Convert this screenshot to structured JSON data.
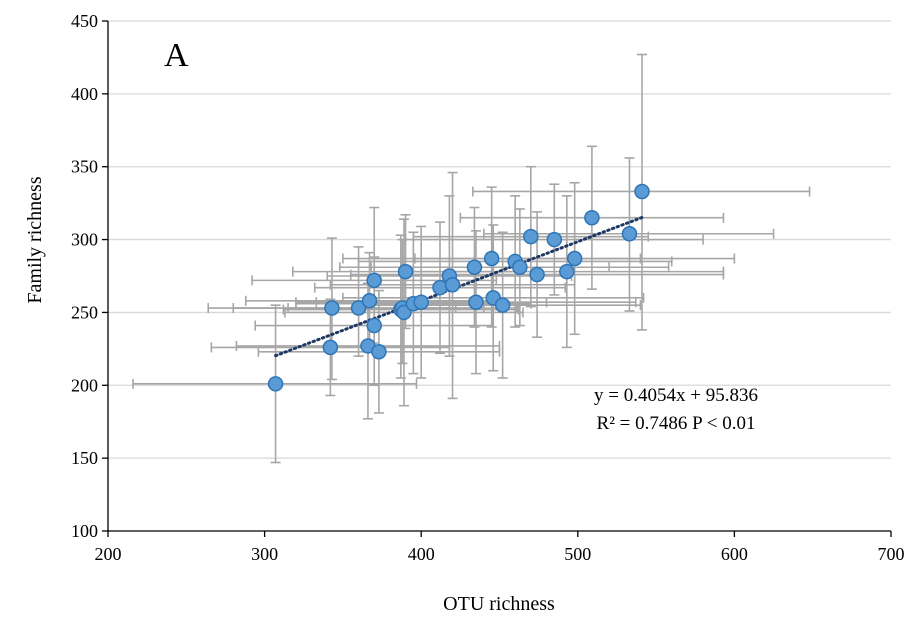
{
  "chart_data": {
    "type": "scatter",
    "panel_label": "A",
    "xlabel": "OTU richness",
    "ylabel": "Family richness",
    "xlim": [
      200,
      700
    ],
    "ylim": [
      100,
      450
    ],
    "xticks": [
      "200",
      "300",
      "400",
      "500",
      "600",
      "700"
    ],
    "yticks": [
      "100",
      "150",
      "200",
      "250",
      "300",
      "350",
      "400",
      "450"
    ],
    "grid": "horizontal",
    "colors": {
      "point_fill": "#5b9bd5",
      "point_stroke": "#2e75b6",
      "error_bar": "#a6a6a6",
      "trendline": "#1f3864",
      "grid": "#d9d9d9"
    },
    "points": [
      {
        "x": 307,
        "y": 201,
        "xerr": [
          216,
          397
        ],
        "yerr": [
          147,
          255
        ]
      },
      {
        "x": 342,
        "y": 226,
        "xerr": [
          266,
          418
        ],
        "yerr": [
          193,
          259
        ]
      },
      {
        "x": 343,
        "y": 253,
        "xerr": [
          264,
          422
        ],
        "yerr": [
          204,
          301
        ]
      },
      {
        "x": 360,
        "y": 253,
        "xerr": [
          280,
          440
        ],
        "yerr": [
          220,
          295
        ]
      },
      {
        "x": 366,
        "y": 227,
        "xerr": [
          282,
          450
        ],
        "yerr": [
          177,
          270
        ]
      },
      {
        "x": 367,
        "y": 258,
        "xerr": [
          288,
          446
        ],
        "yerr": [
          224,
          291
        ]
      },
      {
        "x": 370,
        "y": 241,
        "xerr": [
          294,
          446
        ],
        "yerr": [
          200,
          288
        ]
      },
      {
        "x": 370,
        "y": 272,
        "xerr": [
          292,
          448
        ],
        "yerr": [
          229,
          322
        ]
      },
      {
        "x": 373,
        "y": 223,
        "xerr": [
          296,
          450
        ],
        "yerr": [
          181,
          265
        ]
      },
      {
        "x": 387,
        "y": 252,
        "xerr": [
          312,
          462
        ],
        "yerr": [
          205,
          303
        ]
      },
      {
        "x": 388,
        "y": 253,
        "xerr": [
          315,
          461
        ],
        "yerr": [
          215,
          300
        ]
      },
      {
        "x": 389,
        "y": 250,
        "xerr": [
          313,
          465
        ],
        "yerr": [
          186,
          314
        ]
      },
      {
        "x": 390,
        "y": 278,
        "xerr": [
          318,
          462
        ],
        "yerr": [
          239,
          317
        ]
      },
      {
        "x": 395,
        "y": 256,
        "xerr": [
          320,
          470
        ],
        "yerr": [
          208,
          305
        ]
      },
      {
        "x": 400,
        "y": 257,
        "xerr": [
          320,
          480
        ],
        "yerr": [
          205,
          309
        ]
      },
      {
        "x": 412,
        "y": 267,
        "xerr": [
          332,
          492
        ],
        "yerr": [
          222,
          312
        ]
      },
      {
        "x": 418,
        "y": 275,
        "xerr": [
          340,
          496
        ],
        "yerr": [
          220,
          330
        ]
      },
      {
        "x": 420,
        "y": 269,
        "xerr": [
          342,
          498
        ],
        "yerr": [
          191,
          346
        ]
      },
      {
        "x": 434,
        "y": 281,
        "xerr": [
          348,
          520
        ],
        "yerr": [
          240,
          322
        ]
      },
      {
        "x": 435,
        "y": 257,
        "xerr": [
          333,
          537
        ],
        "yerr": [
          208,
          306
        ]
      },
      {
        "x": 445,
        "y": 287,
        "xerr": [
          350,
          540
        ],
        "yerr": [
          240,
          336
        ]
      },
      {
        "x": 446,
        "y": 260,
        "xerr": [
          350,
          542
        ],
        "yerr": [
          210,
          310
        ]
      },
      {
        "x": 452,
        "y": 255,
        "xerr": [
          365,
          540
        ],
        "yerr": [
          205,
          305
        ]
      },
      {
        "x": 460,
        "y": 285,
        "xerr": [
          360,
          560
        ],
        "yerr": [
          240,
          330
        ]
      },
      {
        "x": 463,
        "y": 281,
        "xerr": [
          368,
          558
        ],
        "yerr": [
          241,
          321
        ]
      },
      {
        "x": 470,
        "y": 302,
        "xerr": [
          395,
          545
        ],
        "yerr": [
          254,
          350
        ]
      },
      {
        "x": 474,
        "y": 276,
        "xerr": [
          355,
          593
        ],
        "yerr": [
          233,
          319
        ]
      },
      {
        "x": 485,
        "y": 300,
        "xerr": [
          390,
          580
        ],
        "yerr": [
          262,
          338
        ]
      },
      {
        "x": 493,
        "y": 278,
        "xerr": [
          393,
          593
        ],
        "yerr": [
          226,
          330
        ]
      },
      {
        "x": 498,
        "y": 287,
        "xerr": [
          396,
          600
        ],
        "yerr": [
          235,
          339
        ]
      },
      {
        "x": 509,
        "y": 315,
        "xerr": [
          425,
          593
        ],
        "yerr": [
          266,
          364
        ]
      },
      {
        "x": 533,
        "y": 304,
        "xerr": [
          440,
          625
        ],
        "yerr": [
          251,
          356
        ]
      },
      {
        "x": 541,
        "y": 333,
        "xerr": [
          433,
          648
        ],
        "yerr": [
          238,
          427
        ]
      }
    ],
    "trendline": {
      "slope": 0.4054,
      "intercept": 95.836,
      "x_range": [
        307,
        541
      ]
    },
    "annotations": [
      "y = 0.4054x + 95.836",
      "R² = 0.7486 P < 0.01"
    ]
  }
}
